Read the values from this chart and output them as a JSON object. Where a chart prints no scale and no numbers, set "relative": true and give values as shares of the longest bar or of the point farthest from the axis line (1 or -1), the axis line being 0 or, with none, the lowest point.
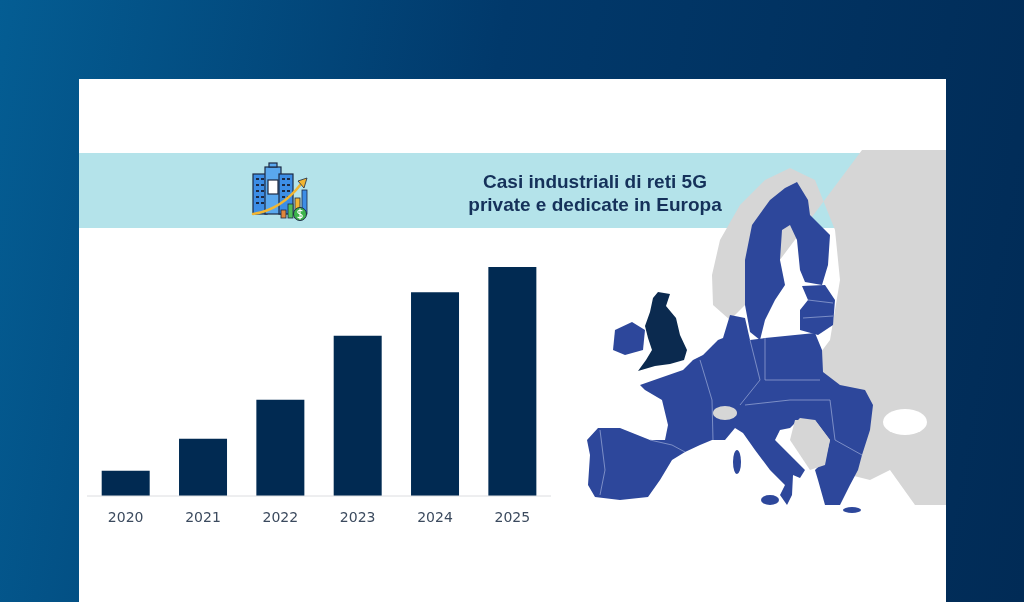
{
  "chart_data": {
    "type": "bar",
    "title": "Casi industriali di reti 5G private e dedicate in Europa",
    "categories": [
      "2020",
      "2021",
      "2022",
      "2023",
      "2024",
      "2025"
    ],
    "values": [
      0.11,
      0.25,
      0.42,
      0.7,
      0.89,
      1
    ],
    "color": "#012a52",
    "relative": true
  }
}
